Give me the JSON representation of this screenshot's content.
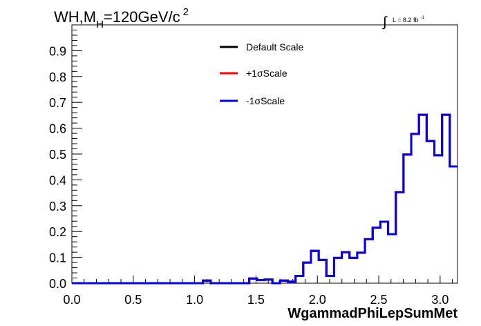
{
  "title": {
    "prefix": "WH,M",
    "subscript": "H",
    "main": "=120GeV/c",
    "superscript": "2"
  },
  "lumi": {
    "integral": "∫",
    "text": "L = 8.2 fb",
    "superscript": "-1"
  },
  "chart_data": {
    "type": "line",
    "title": "WH,MH=120GeV/c2",
    "xlabel": "WgammadPhiLepSumMet",
    "ylabel": "",
    "xlim": [
      0.0,
      3.1416
    ],
    "ylim": [
      0.0,
      1.0
    ],
    "x_ticks": [
      "0.0",
      "0.5",
      "1.0",
      "1.5",
      "2.0",
      "2.5",
      "3.0"
    ],
    "x_tick_values": [
      0.0,
      0.5,
      1.0,
      1.5,
      2.0,
      2.5,
      3.0
    ],
    "y_ticks": [
      "0.0",
      "0.1",
      "0.2",
      "0.3",
      "0.4",
      "0.5",
      "0.6",
      "0.7",
      "0.8",
      "0.9"
    ],
    "y_tick_values": [
      0.0,
      0.1,
      0.2,
      0.3,
      0.4,
      0.5,
      0.6,
      0.7,
      0.8,
      0.9
    ],
    "grid": false,
    "legend": "top-center",
    "bin_edges": [
      0.0,
      0.0628,
      0.1257,
      0.1885,
      0.2513,
      0.3142,
      0.377,
      0.4398,
      0.5027,
      0.5655,
      0.6283,
      0.6912,
      0.754,
      0.8168,
      0.8796,
      0.9425,
      1.0053,
      1.0681,
      1.131,
      1.1938,
      1.2566,
      1.3195,
      1.3823,
      1.4451,
      1.508,
      1.5708,
      1.6336,
      1.6965,
      1.7593,
      1.8221,
      1.885,
      1.9478,
      2.0106,
      2.0735,
      2.1363,
      2.1991,
      2.2619,
      2.3248,
      2.3876,
      2.4504,
      2.5133,
      2.5761,
      2.6389,
      2.7018,
      2.7646,
      2.8274,
      2.8903,
      2.9531,
      3.0159,
      3.0788,
      3.1416
    ],
    "series": [
      {
        "name": "Default Scale",
        "color": "#000000",
        "values": [
          0,
          0,
          0,
          0,
          0,
          0,
          0,
          0,
          0,
          0,
          0,
          0,
          0,
          0,
          0,
          0,
          0,
          0.01,
          0,
          0,
          0,
          0,
          0,
          0.018,
          0.012,
          0.014,
          0,
          0.01,
          0.006,
          0.028,
          0.08,
          0.125,
          0.09,
          0.028,
          0.098,
          0.12,
          0.098,
          0.118,
          0.17,
          0.215,
          0.238,
          0.19,
          0.352,
          0.498,
          0.578,
          0.652,
          0.55,
          0.495,
          0.652,
          0.452
        ]
      },
      {
        "name": "+1σScale",
        "color": "#ff0000",
        "values": [
          0,
          0,
          0,
          0,
          0,
          0,
          0,
          0,
          0,
          0,
          0,
          0,
          0,
          0,
          0,
          0,
          0,
          0.01,
          0,
          0,
          0,
          0,
          0,
          0.018,
          0.012,
          0.014,
          0,
          0.01,
          0.006,
          0.028,
          0.08,
          0.125,
          0.09,
          0.028,
          0.098,
          0.12,
          0.098,
          0.118,
          0.17,
          0.215,
          0.238,
          0.19,
          0.352,
          0.498,
          0.578,
          0.652,
          0.55,
          0.495,
          0.652,
          0.452
        ]
      },
      {
        "name": "-1σScale",
        "color": "#0000ee",
        "values": [
          0,
          0,
          0,
          0,
          0,
          0,
          0,
          0,
          0,
          0,
          0,
          0,
          0,
          0,
          0,
          0,
          0,
          0.01,
          0,
          0,
          0,
          0,
          0,
          0.018,
          0.012,
          0.014,
          0,
          0.01,
          0.006,
          0.028,
          0.08,
          0.125,
          0.09,
          0.028,
          0.098,
          0.12,
          0.098,
          0.118,
          0.17,
          0.215,
          0.238,
          0.19,
          0.352,
          0.498,
          0.578,
          0.652,
          0.55,
          0.495,
          0.652,
          0.452
        ]
      }
    ]
  }
}
